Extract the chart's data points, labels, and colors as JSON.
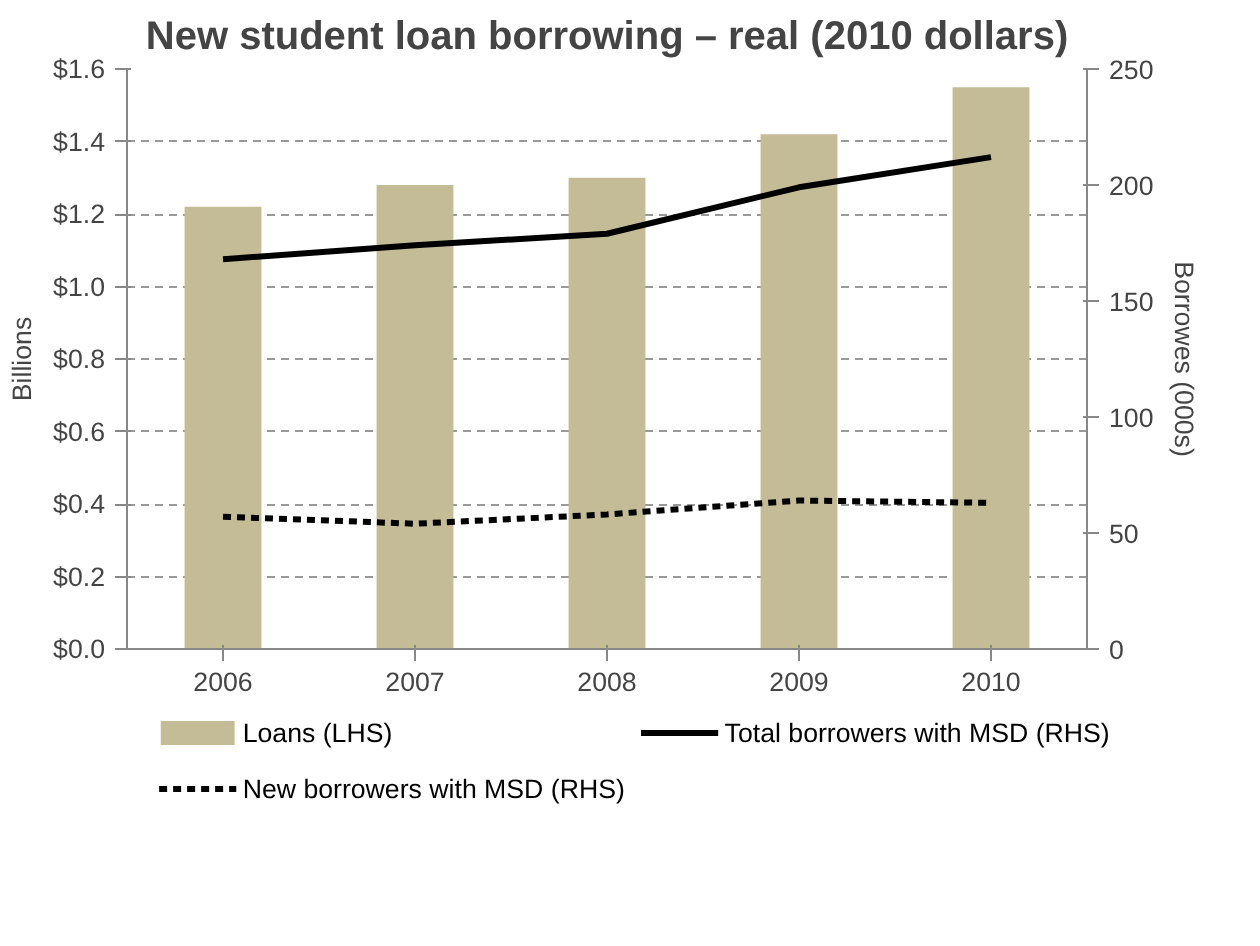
{
  "chart_data": {
    "type": "bar",
    "title": "New student loan borrowing – real (2010 dollars)",
    "ylabel": "Billions",
    "y2label": "Borrowes (000s)",
    "categories": [
      "2006",
      "2007",
      "2008",
      "2009",
      "2010"
    ],
    "series": [
      {
        "name": "Loans (LHS)",
        "color": "#c4bc96",
        "values": [
          1.22,
          1.28,
          1.3,
          1.42,
          1.55
        ]
      },
      {
        "name": "Total borrowers with MSD (RHS)",
        "type": "line",
        "axis": "y2",
        "color": "#000000",
        "line_style": "solid",
        "values": [
          168,
          174,
          179,
          199,
          212
        ]
      },
      {
        "name": "New borrowers with MSD (RHS)",
        "type": "line",
        "axis": "y2",
        "color": "#000000",
        "line_style": "dashed",
        "values": [
          57,
          54,
          58,
          64,
          63
        ]
      }
    ],
    "ylim": [
      0,
      1.6
    ],
    "yticks": [
      {
        "value": 0,
        "label": "$0.0"
      },
      {
        "value": 0.2,
        "label": "$0.2"
      },
      {
        "value": 0.4,
        "label": "$0.4"
      },
      {
        "value": 0.6,
        "label": "$0.6"
      },
      {
        "value": 0.8,
        "label": "$0.8"
      },
      {
        "value": 1.0,
        "label": "$1.0"
      },
      {
        "value": 1.2,
        "label": "$1.2"
      },
      {
        "value": 1.4,
        "label": "$1.4"
      },
      {
        "value": 1.6,
        "label": "$1.6"
      }
    ],
    "y2lim": [
      0,
      250
    ],
    "y2ticks": [
      0,
      50,
      100,
      150,
      200,
      250
    ],
    "grid": "y",
    "legend": "bottom"
  }
}
